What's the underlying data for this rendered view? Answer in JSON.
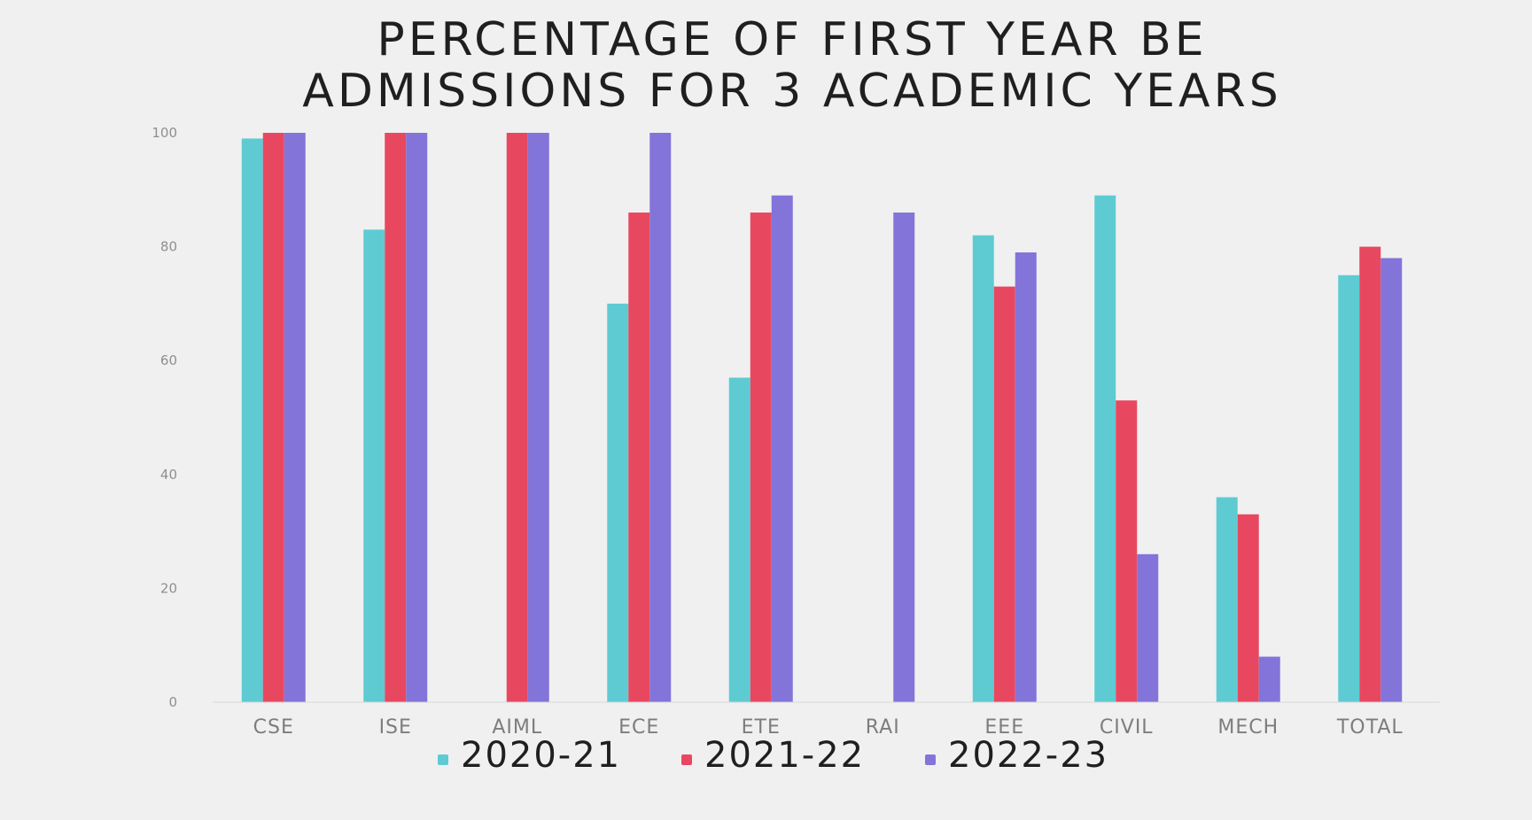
{
  "chart_data": {
    "type": "bar",
    "title": "PERCENTAGE OF FIRST YEAR BE ADMISSIONS FOR 3 ACADEMIC YEARS",
    "title_lines": [
      "PERCENTAGE OF FIRST YEAR BE",
      "ADMISSIONS FOR 3 ACADEMIC YEARS"
    ],
    "xlabel": "",
    "ylabel": "",
    "categories": [
      "CSE",
      "ISE",
      "AIML",
      "ECE",
      "ETE",
      "RAI",
      "EEE",
      "CIVIL",
      "MECH",
      "TOTAL"
    ],
    "series": [
      {
        "name": "2020-21",
        "color": "#5ecbd3",
        "values": [
          99,
          83,
          0,
          70,
          57,
          0,
          82,
          89,
          36,
          75
        ]
      },
      {
        "name": "2021-22",
        "color": "#e8485f",
        "values": [
          100,
          100,
          100,
          86,
          86,
          0,
          73,
          53,
          33,
          80
        ]
      },
      {
        "name": "2022-23",
        "color": "#8374d9",
        "values": [
          100,
          100,
          100,
          100,
          89,
          86,
          79,
          26,
          8,
          78
        ]
      }
    ],
    "yticks": [
      "0",
      "20",
      "40",
      "60",
      "80",
      "100"
    ],
    "ylim": [
      0,
      100
    ],
    "grid": false,
    "legend_position": "bottom"
  }
}
